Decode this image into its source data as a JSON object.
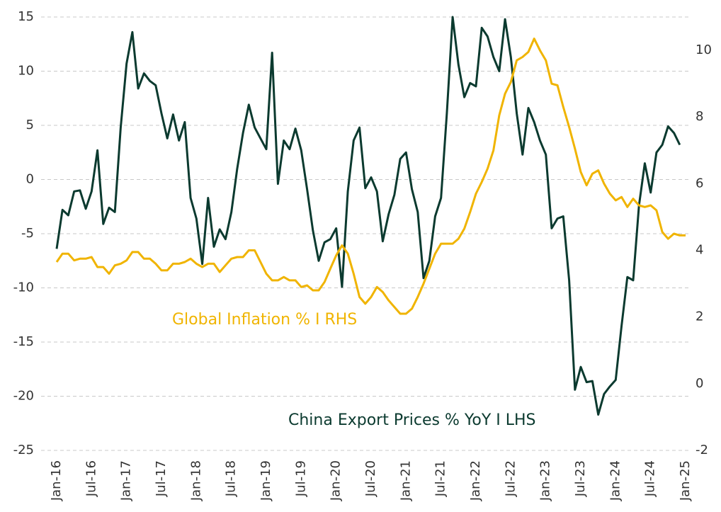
{
  "chart_data": {
    "type": "line",
    "categories": [
      "Jan-16",
      null,
      null,
      null,
      null,
      null,
      "Jul-16",
      null,
      null,
      null,
      null,
      null,
      "Jan-17",
      null,
      null,
      null,
      null,
      null,
      "Jul-17",
      null,
      null,
      null,
      null,
      null,
      "Jan-18",
      null,
      null,
      null,
      null,
      null,
      "Jul-18",
      null,
      null,
      null,
      null,
      null,
      "Jan-19",
      null,
      null,
      null,
      null,
      null,
      "Jul-19",
      null,
      null,
      null,
      null,
      null,
      "Jan-20",
      null,
      null,
      null,
      null,
      null,
      "Jul-20",
      null,
      null,
      null,
      null,
      null,
      "Jan-21",
      null,
      null,
      null,
      null,
      null,
      "Jul-21",
      null,
      null,
      null,
      null,
      null,
      "Jan-22",
      null,
      null,
      null,
      null,
      null,
      "Jul-22",
      null,
      null,
      null,
      null,
      null,
      "Jan-23",
      null,
      null,
      null,
      null,
      null,
      "Jul-23",
      null,
      null,
      null,
      null,
      null,
      "Jan-24",
      null,
      null,
      null,
      null,
      null,
      "Jul-24",
      null,
      null,
      null,
      null,
      null,
      "Jan-25"
    ],
    "series": [
      {
        "name": "China Export Prices % YoY I LHS",
        "color": "#0b3a2f",
        "axis": "y",
        "values": [
          -6.4,
          -2.8,
          -3.3,
          -1.1,
          -1.0,
          -2.7,
          -1.1,
          2.7,
          -4.1,
          -2.6,
          -3.0,
          4.8,
          10.7,
          13.6,
          8.4,
          9.8,
          9.1,
          8.7,
          6.1,
          3.8,
          6.0,
          3.6,
          5.3,
          -1.7,
          -3.6,
          -7.8,
          -1.7,
          -6.2,
          -4.6,
          -5.5,
          -3.0,
          1.0,
          4.3,
          6.9,
          4.8,
          3.8,
          2.8,
          11.7,
          -0.4,
          3.6,
          2.8,
          4.7,
          2.7,
          -0.9,
          -4.7,
          -7.5,
          -5.8,
          -5.5,
          -4.5,
          -9.9,
          -1.1,
          3.6,
          4.8,
          -0.8,
          0.2,
          -1.1,
          -5.7,
          -3.2,
          -1.4,
          1.9,
          2.5,
          -0.9,
          -3.0,
          -9.1,
          -7.5,
          -3.4,
          -1.7,
          6.1,
          15.0,
          10.6,
          7.6,
          8.9,
          8.6,
          14.0,
          13.2,
          11.3,
          10.0,
          14.8,
          11.3,
          6.1,
          2.3,
          6.6,
          5.3,
          3.6,
          2.3,
          -4.5,
          -3.6,
          -3.4,
          -9.3,
          -19.4,
          -17.3,
          -18.7,
          -18.6,
          -21.7,
          -19.8,
          -19.1,
          -18.5,
          -13.5,
          -9.0,
          -9.3,
          -2.4,
          1.5,
          -1.2,
          2.5,
          3.2,
          4.9,
          4.3,
          3.2,
          null
        ]
      },
      {
        "name": "Global Inflation % I RHS",
        "color": "#f0b400",
        "axis": "y2",
        "values": [
          3.65,
          3.9,
          3.9,
          3.7,
          3.75,
          3.75,
          3.8,
          3.5,
          3.5,
          3.3,
          3.55,
          3.6,
          3.7,
          3.95,
          3.95,
          3.75,
          3.75,
          3.6,
          3.4,
          3.4,
          3.6,
          3.6,
          3.65,
          3.75,
          3.6,
          3.5,
          3.6,
          3.6,
          3.35,
          3.55,
          3.75,
          3.8,
          3.8,
          4.0,
          4.0,
          3.65,
          3.3,
          3.1,
          3.1,
          3.2,
          3.1,
          3.1,
          2.9,
          2.95,
          2.8,
          2.8,
          3.05,
          3.45,
          3.85,
          4.15,
          3.9,
          3.3,
          2.6,
          2.4,
          2.6,
          2.9,
          2.75,
          2.5,
          2.3,
          2.1,
          2.1,
          2.25,
          2.6,
          3.0,
          3.45,
          3.9,
          4.2,
          4.2,
          4.2,
          4.35,
          4.65,
          5.15,
          5.7,
          6.05,
          6.45,
          7.0,
          8.05,
          8.7,
          9.05,
          9.7,
          9.8,
          9.95,
          10.35,
          10.0,
          9.7,
          9.0,
          8.95,
          8.3,
          7.7,
          7.05,
          6.35,
          5.95,
          6.3,
          6.4,
          6.0,
          5.7,
          5.5,
          5.6,
          5.3,
          5.55,
          5.35,
          5.3,
          5.35,
          5.2,
          4.55,
          4.35,
          4.5,
          4.45,
          4.45
        ]
      }
    ],
    "ylim": [
      -25,
      15
    ],
    "yticks": [
      -25,
      -20,
      -15,
      -10,
      -5,
      0,
      5,
      10,
      15
    ],
    "y2lim": [
      -2,
      11
    ],
    "y2ticks": [
      -2,
      0,
      2,
      4,
      6,
      8,
      10
    ],
    "grid": true
  }
}
